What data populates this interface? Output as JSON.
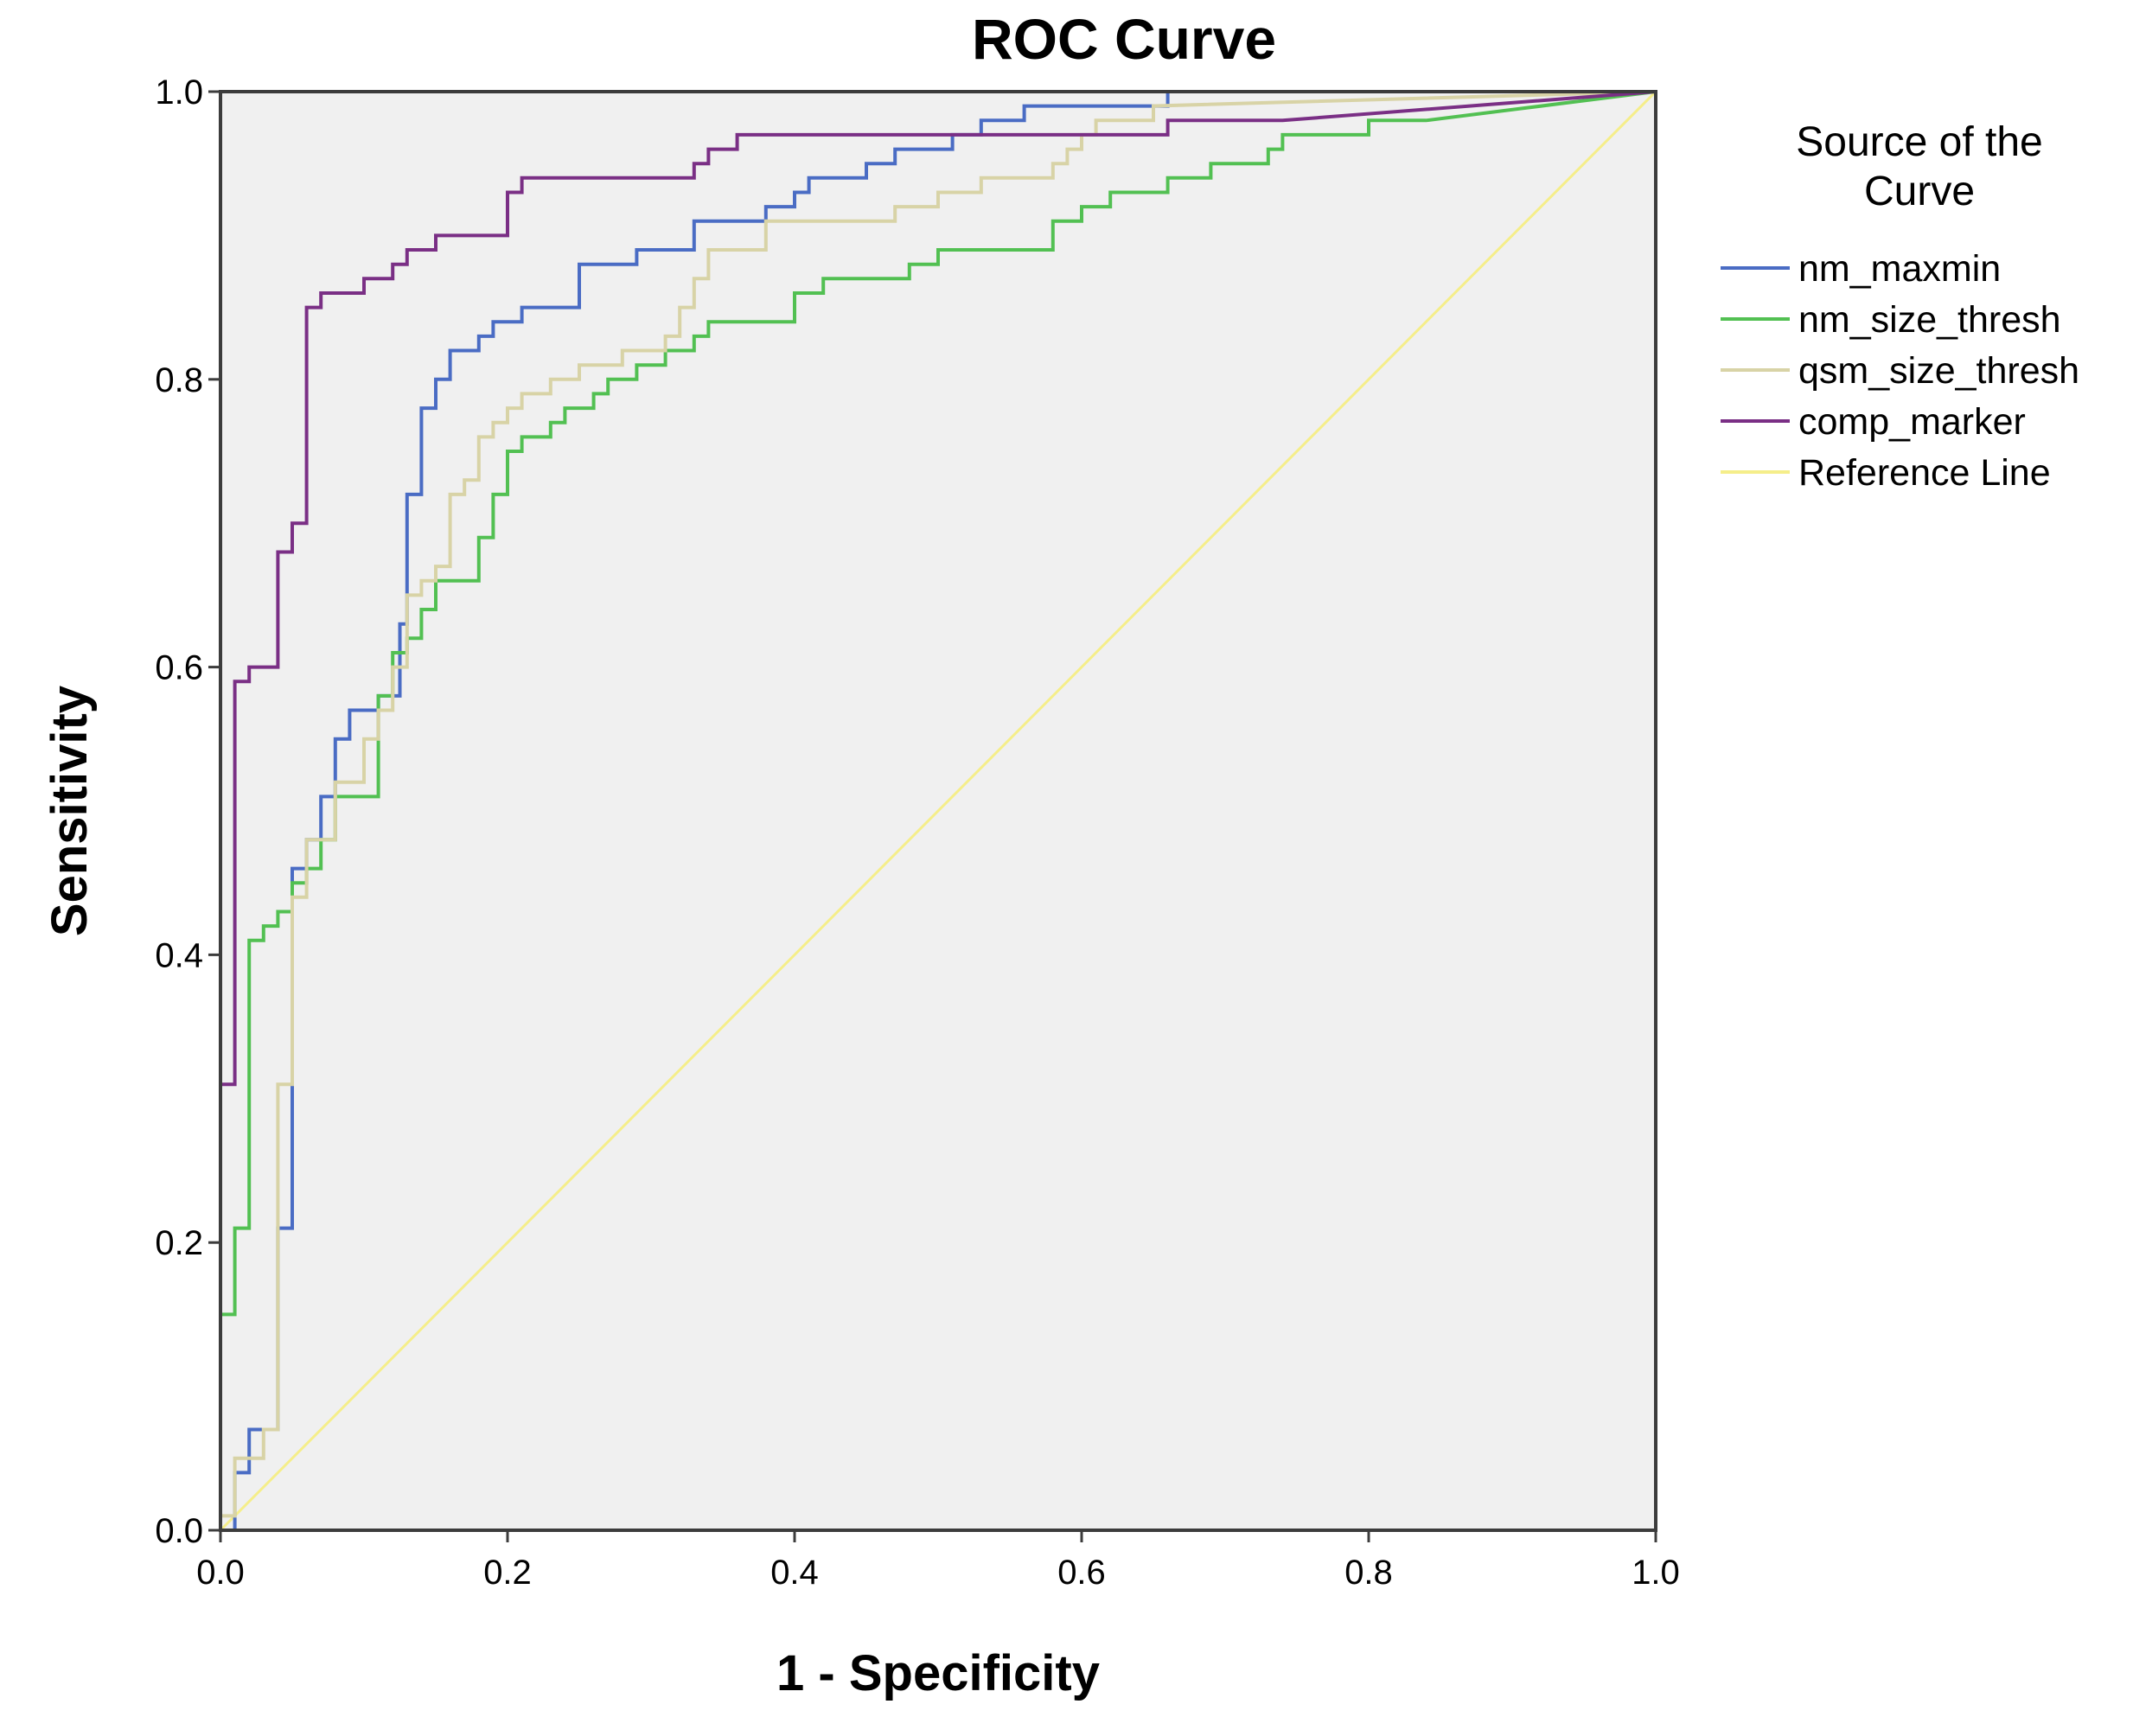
{
  "chart_data": {
    "type": "line",
    "title": "ROC Curve",
    "xlabel": "1 - Specificity",
    "ylabel": "Sensitivity",
    "xlim": [
      0,
      1
    ],
    "ylim": [
      0,
      1
    ],
    "xticks": [
      "0.0",
      "0.2",
      "0.4",
      "0.6",
      "0.8",
      "1.0"
    ],
    "yticks": [
      "0.0",
      "0.2",
      "0.4",
      "0.6",
      "0.8",
      "1.0"
    ],
    "grid": false,
    "plot_background": "#f0f0f0",
    "legend": {
      "title_lines": [
        "Source of the",
        "Curve"
      ],
      "position": "right"
    },
    "series": [
      {
        "name": "nm_maxmin",
        "color": "#4a6cc4",
        "x": [
          0.0,
          0.01,
          0.01,
          0.02,
          0.02,
          0.03,
          0.03,
          0.04,
          0.04,
          0.05,
          0.05,
          0.06,
          0.06,
          0.07,
          0.07,
          0.08,
          0.08,
          0.09,
          0.09,
          0.1,
          0.1,
          0.11,
          0.11,
          0.12,
          0.12,
          0.125,
          0.125,
          0.13,
          0.13,
          0.14,
          0.14,
          0.15,
          0.15,
          0.16,
          0.16,
          0.18,
          0.18,
          0.19,
          0.19,
          0.21,
          0.21,
          0.23,
          0.23,
          0.25,
          0.25,
          0.29,
          0.29,
          0.33,
          0.33,
          0.38,
          0.38,
          0.4,
          0.4,
          0.41,
          0.41,
          0.44,
          0.44,
          0.45,
          0.45,
          0.46,
          0.46,
          0.47,
          0.47,
          0.51,
          0.51,
          0.52,
          0.52,
          0.53,
          0.53,
          0.55,
          0.55,
          0.56,
          0.56,
          0.59,
          0.59,
          0.66,
          0.66,
          0.77,
          1.0
        ],
        "y": [
          0.0,
          0.0,
          0.04,
          0.04,
          0.07,
          0.07,
          0.07,
          0.07,
          0.21,
          0.21,
          0.46,
          0.46,
          0.48,
          0.48,
          0.51,
          0.51,
          0.55,
          0.55,
          0.57,
          0.57,
          0.57,
          0.57,
          0.58,
          0.58,
          0.58,
          0.58,
          0.63,
          0.63,
          0.72,
          0.72,
          0.78,
          0.78,
          0.8,
          0.8,
          0.82,
          0.82,
          0.83,
          0.83,
          0.84,
          0.84,
          0.85,
          0.85,
          0.85,
          0.85,
          0.88,
          0.88,
          0.89,
          0.89,
          0.91,
          0.91,
          0.92,
          0.92,
          0.93,
          0.93,
          0.94,
          0.94,
          0.94,
          0.94,
          0.95,
          0.95,
          0.95,
          0.95,
          0.96,
          0.96,
          0.97,
          0.97,
          0.97,
          0.97,
          0.98,
          0.98,
          0.98,
          0.98,
          0.99,
          0.99,
          0.99,
          0.99,
          1.0,
          1.0,
          1.0
        ]
      },
      {
        "name": "nm_size_thresh",
        "color": "#52c052",
        "x": [
          0.0,
          0.0,
          0.01,
          0.01,
          0.02,
          0.02,
          0.03,
          0.03,
          0.04,
          0.04,
          0.05,
          0.05,
          0.06,
          0.06,
          0.07,
          0.07,
          0.08,
          0.08,
          0.11,
          0.11,
          0.12,
          0.12,
          0.13,
          0.13,
          0.14,
          0.14,
          0.15,
          0.15,
          0.18,
          0.18,
          0.19,
          0.19,
          0.2,
          0.2,
          0.21,
          0.21,
          0.23,
          0.23,
          0.24,
          0.24,
          0.26,
          0.26,
          0.27,
          0.27,
          0.29,
          0.29,
          0.31,
          0.31,
          0.33,
          0.33,
          0.34,
          0.34,
          0.4,
          0.4,
          0.42,
          0.42,
          0.44,
          0.44,
          0.48,
          0.48,
          0.5,
          0.5,
          0.58,
          0.58,
          0.6,
          0.6,
          0.62,
          0.62,
          0.63,
          0.63,
          0.66,
          0.66,
          0.69,
          0.69,
          0.73,
          0.73,
          0.74,
          0.74,
          0.76,
          0.76,
          0.8,
          0.8,
          0.82,
          0.82,
          0.84,
          0.84,
          1.0
        ],
        "y": [
          0.0,
          0.15,
          0.15,
          0.21,
          0.21,
          0.41,
          0.41,
          0.42,
          0.42,
          0.43,
          0.43,
          0.45,
          0.45,
          0.46,
          0.46,
          0.48,
          0.48,
          0.51,
          0.51,
          0.58,
          0.58,
          0.61,
          0.61,
          0.62,
          0.62,
          0.64,
          0.64,
          0.66,
          0.66,
          0.69,
          0.69,
          0.72,
          0.72,
          0.75,
          0.75,
          0.76,
          0.76,
          0.77,
          0.77,
          0.78,
          0.78,
          0.79,
          0.79,
          0.8,
          0.8,
          0.81,
          0.81,
          0.82,
          0.82,
          0.83,
          0.83,
          0.84,
          0.84,
          0.86,
          0.86,
          0.87,
          0.87,
          0.87,
          0.87,
          0.88,
          0.88,
          0.89,
          0.89,
          0.91,
          0.91,
          0.92,
          0.92,
          0.93,
          0.93,
          0.93,
          0.93,
          0.94,
          0.94,
          0.95,
          0.95,
          0.96,
          0.96,
          0.97,
          0.97,
          0.97,
          0.97,
          0.98,
          0.98,
          0.98,
          0.98,
          0.98,
          1.0
        ]
      },
      {
        "name": "qsm_size_thresh",
        "color": "#d8d3a6",
        "x": [
          0.0,
          0.0,
          0.01,
          0.01,
          0.03,
          0.03,
          0.04,
          0.04,
          0.05,
          0.05,
          0.06,
          0.06,
          0.08,
          0.08,
          0.1,
          0.1,
          0.11,
          0.11,
          0.12,
          0.12,
          0.13,
          0.13,
          0.14,
          0.14,
          0.15,
          0.15,
          0.16,
          0.16,
          0.17,
          0.17,
          0.18,
          0.18,
          0.19,
          0.19,
          0.2,
          0.2,
          0.21,
          0.21,
          0.23,
          0.23,
          0.25,
          0.25,
          0.28,
          0.28,
          0.31,
          0.31,
          0.32,
          0.32,
          0.33,
          0.33,
          0.34,
          0.34,
          0.38,
          0.38,
          0.47,
          0.47,
          0.5,
          0.5,
          0.53,
          0.53,
          0.58,
          0.58,
          0.59,
          0.59,
          0.6,
          0.6,
          0.61,
          0.61,
          0.63,
          0.63,
          0.65,
          0.65,
          1.0
        ],
        "y": [
          0.0,
          0.01,
          0.01,
          0.05,
          0.05,
          0.07,
          0.07,
          0.31,
          0.31,
          0.44,
          0.44,
          0.48,
          0.48,
          0.52,
          0.52,
          0.55,
          0.55,
          0.57,
          0.57,
          0.6,
          0.6,
          0.65,
          0.65,
          0.66,
          0.66,
          0.67,
          0.67,
          0.72,
          0.72,
          0.73,
          0.73,
          0.76,
          0.76,
          0.77,
          0.77,
          0.78,
          0.78,
          0.79,
          0.79,
          0.8,
          0.8,
          0.81,
          0.81,
          0.82,
          0.82,
          0.83,
          0.83,
          0.85,
          0.85,
          0.87,
          0.87,
          0.89,
          0.89,
          0.91,
          0.91,
          0.92,
          0.92,
          0.93,
          0.93,
          0.94,
          0.94,
          0.95,
          0.95,
          0.96,
          0.96,
          0.97,
          0.97,
          0.98,
          0.98,
          0.98,
          0.98,
          0.99,
          1.0
        ]
      },
      {
        "name": "comp_marker",
        "color": "#7a2f85",
        "x": [
          0.0,
          0.0,
          0.01,
          0.01,
          0.02,
          0.02,
          0.03,
          0.03,
          0.04,
          0.04,
          0.05,
          0.05,
          0.06,
          0.06,
          0.07,
          0.07,
          0.1,
          0.1,
          0.12,
          0.12,
          0.13,
          0.13,
          0.14,
          0.14,
          0.15,
          0.15,
          0.2,
          0.2,
          0.21,
          0.21,
          0.33,
          0.33,
          0.34,
          0.34,
          0.35,
          0.35,
          0.36,
          0.36,
          0.41,
          0.41,
          0.55,
          0.55,
          0.66,
          0.66,
          0.74,
          0.74,
          1.0
        ],
        "y": [
          0.0,
          0.31,
          0.31,
          0.59,
          0.59,
          0.6,
          0.6,
          0.6,
          0.6,
          0.68,
          0.68,
          0.7,
          0.7,
          0.85,
          0.85,
          0.86,
          0.86,
          0.87,
          0.87,
          0.88,
          0.88,
          0.89,
          0.89,
          0.89,
          0.89,
          0.9,
          0.9,
          0.93,
          0.93,
          0.94,
          0.94,
          0.95,
          0.95,
          0.96,
          0.96,
          0.96,
          0.96,
          0.97,
          0.97,
          0.97,
          0.97,
          0.97,
          0.97,
          0.98,
          0.98,
          0.98,
          1.0
        ]
      },
      {
        "name": "Reference Line",
        "color": "#f5ee8a",
        "x": [
          0.0,
          1.0
        ],
        "y": [
          0.0,
          1.0
        ]
      }
    ]
  }
}
